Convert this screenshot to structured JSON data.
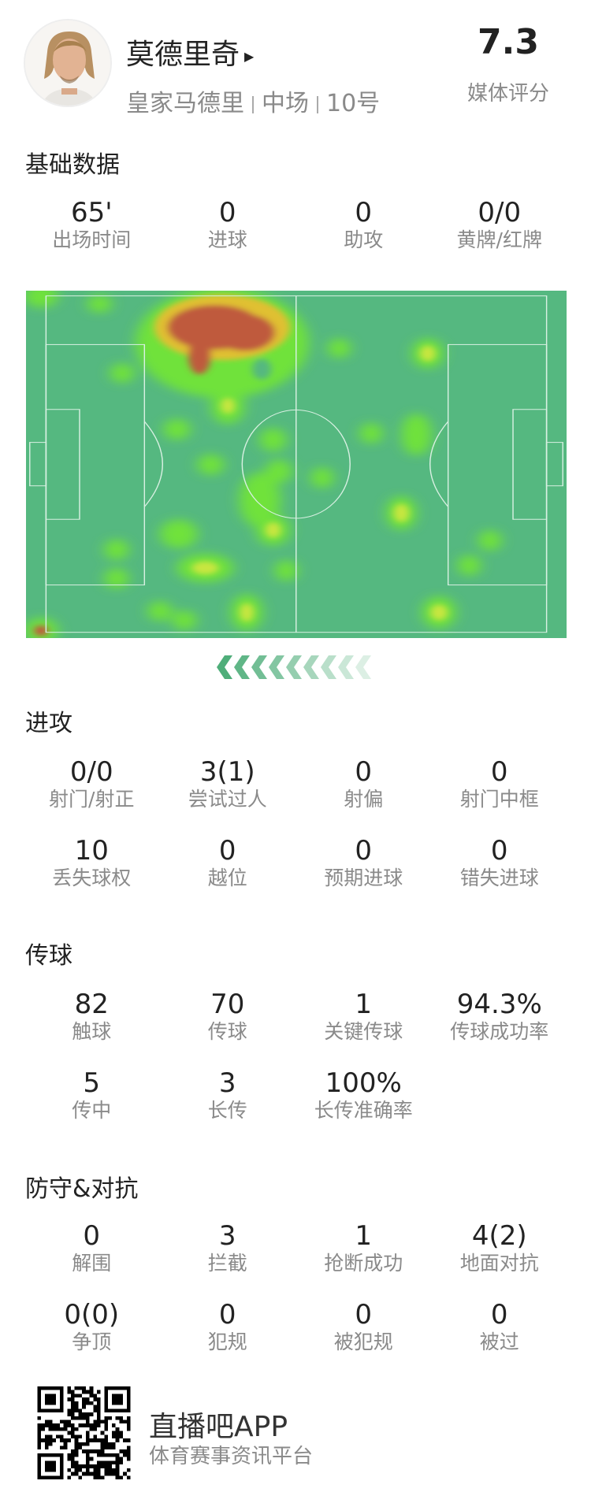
{
  "player": {
    "name": "莫德里奇",
    "team": "皇家马德里",
    "position": "中场",
    "number": "10号",
    "rating": "7.3",
    "rating_label": "媒体评分"
  },
  "sections": {
    "basic": {
      "title": "基础数据",
      "stats": [
        {
          "value": "65'",
          "label": "出场时间"
        },
        {
          "value": "0",
          "label": "进球"
        },
        {
          "value": "0",
          "label": "助攻"
        },
        {
          "value": "0/0",
          "label": "黄牌/红牌"
        }
      ]
    },
    "attack": {
      "title": "进攻",
      "stats": [
        {
          "value": "0/0",
          "label": "射门/射正"
        },
        {
          "value": "3(1)",
          "label": "尝试过人"
        },
        {
          "value": "0",
          "label": "射偏"
        },
        {
          "value": "0",
          "label": "射门中框"
        },
        {
          "value": "10",
          "label": "丢失球权"
        },
        {
          "value": "0",
          "label": "越位"
        },
        {
          "value": "0",
          "label": "预期进球"
        },
        {
          "value": "0",
          "label": "错失进球"
        }
      ]
    },
    "passing": {
      "title": "传球",
      "stats": [
        {
          "value": "82",
          "label": "触球"
        },
        {
          "value": "70",
          "label": "传球"
        },
        {
          "value": "1",
          "label": "关键传球"
        },
        {
          "value": "94.3%",
          "label": "传球成功率"
        },
        {
          "value": "5",
          "label": "传中"
        },
        {
          "value": "3",
          "label": "长传"
        },
        {
          "value": "100%",
          "label": "长传准确率"
        }
      ]
    },
    "defense": {
      "title": "防守&对抗",
      "stats": [
        {
          "value": "0",
          "label": "解围"
        },
        {
          "value": "3",
          "label": "拦截"
        },
        {
          "value": "1",
          "label": "抢断成功"
        },
        {
          "value": "4(2)",
          "label": "地面对抗"
        },
        {
          "value": "0(0)",
          "label": "争顶"
        },
        {
          "value": "0",
          "label": "犯规"
        },
        {
          "value": "0",
          "label": "被犯规"
        },
        {
          "value": "0",
          "label": "被过"
        }
      ]
    }
  },
  "heatmap": {
    "pitch_color": "#55b880",
    "line_color": "#d8f0e2",
    "direction": "left"
  },
  "footer": {
    "app_name": "直播吧APP",
    "tagline": "体育赛事资讯平台"
  },
  "colors": {
    "chevron": "#4fae7a"
  }
}
